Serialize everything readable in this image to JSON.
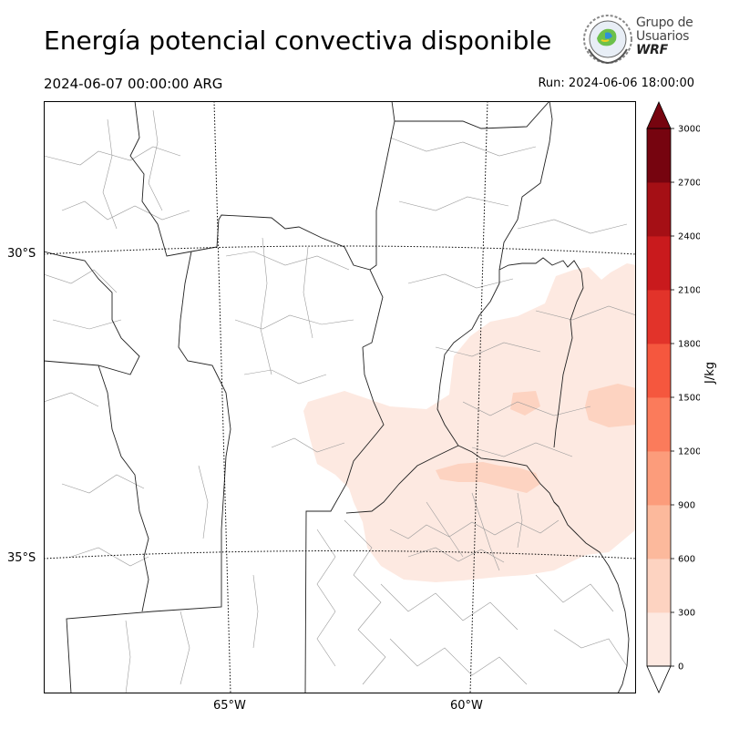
{
  "header": {
    "title": "Energía potencial convectiva disponible",
    "valid_time": "2024-06-07 00:00:00 ARG",
    "run_label": "Run: 2024-06-06 18:00:00"
  },
  "logo": {
    "line1": "Grupo de",
    "line2": "Usuarios",
    "line3": "WRF"
  },
  "map": {
    "lat_labels": [
      "30°S",
      "35°S"
    ],
    "lon_labels": [
      "65°W",
      "60°W"
    ]
  },
  "colorbar": {
    "unit": "J/kg",
    "ticks": [
      "0",
      "300",
      "600",
      "900",
      "1200",
      "1500",
      "1800",
      "2100",
      "2400",
      "2700",
      "3000"
    ],
    "colors": [
      "#fde9e1",
      "#fdd3c1",
      "#fcb99c",
      "#fc9c7b",
      "#fb7b5b",
      "#f5573e",
      "#e2332a",
      "#c91a1d",
      "#a50f15",
      "#76040f"
    ]
  }
}
